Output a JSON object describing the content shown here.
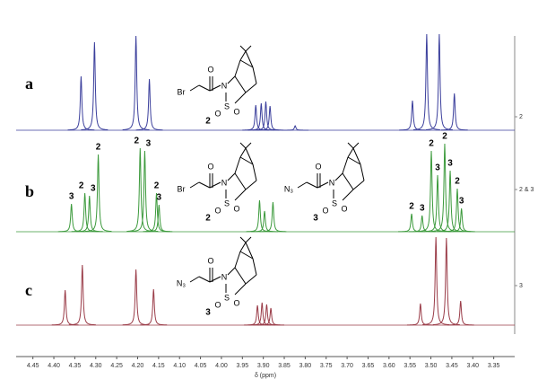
{
  "chart_data": {
    "type": "spectrum",
    "x_label": "δ (ppm)",
    "xlim": [
      4.49,
      3.3
    ],
    "xticks": [
      4.45,
      {
        "value": 4.4,
        "label": "4.40"
      },
      4.35,
      {
        "value": 4.3,
        "label": "4.30"
      },
      4.25,
      {
        "value": 4.2,
        "label": "4.20"
      },
      4.15,
      {
        "value": 4.1,
        "label": "4.10"
      },
      4.05,
      {
        "value": 4.0,
        "label": "4.00"
      },
      3.95,
      {
        "value": 3.9,
        "label": "3.90"
      },
      3.85,
      {
        "value": 3.8,
        "label": "3.80"
      },
      3.75,
      {
        "value": 3.7,
        "label": "3.70"
      },
      3.65,
      {
        "value": 3.6,
        "label": "3.60"
      },
      3.55,
      {
        "value": 3.5,
        "label": "3.50"
      },
      3.45,
      {
        "value": 3.4,
        "label": "3.40"
      },
      3.35
    ],
    "series": [
      {
        "name": "a",
        "axis_label": "2",
        "color": "#3b3f9c",
        "x": [
          4.335,
          4.303,
          4.204,
          4.172,
          3.918,
          3.905,
          3.894,
          3.884,
          3.824,
          3.544,
          3.51,
          3.48,
          3.444
        ],
        "values": [
          60,
          98,
          105,
          57,
          28,
          30,
          32,
          27,
          5,
          33,
          107,
          107,
          41
        ]
      },
      {
        "name": "b",
        "axis_label": "2 & 3",
        "color": "#3c9a3c",
        "x": [
          4.358,
          4.326,
          4.315,
          4.294,
          4.194,
          4.183,
          4.155,
          4.149,
          3.909,
          3.897,
          3.877,
          3.546,
          3.521,
          3.499,
          3.484,
          3.467,
          3.454,
          3.437,
          3.427
        ],
        "values": [
          31,
          43,
          40,
          86,
          93,
          90,
          43,
          30,
          35,
          23,
          33,
          20,
          18,
          90,
          63,
          98,
          68,
          48,
          26
        ],
        "peak_labels": [
          "3",
          "2",
          "3",
          "2",
          "2",
          "3",
          "2",
          "3",
          null,
          null,
          null,
          "2",
          "3",
          "2",
          "3",
          "2",
          "3",
          "2",
          "3"
        ]
      },
      {
        "name": "c",
        "axis_label": "3",
        "color": "#9a3c48",
        "x": [
          4.373,
          4.332,
          4.204,
          4.162,
          3.914,
          3.903,
          3.892,
          3.882,
          3.525,
          3.488,
          3.463,
          3.429
        ],
        "values": [
          39,
          67,
          62,
          40,
          22,
          25,
          23,
          19,
          24,
          98,
          97,
          27
        ]
      }
    ],
    "structures": [
      {
        "atoms": [
          "Br",
          "O",
          "N",
          "S",
          "O",
          "O"
        ],
        "label": "2"
      },
      {
        "atoms": [
          "Br",
          "O",
          "N",
          "S",
          "O",
          "O"
        ],
        "label": "2"
      },
      {
        "atoms": [
          "N₃",
          "O",
          "N",
          "S",
          "O",
          "O"
        ],
        "label": "3"
      },
      {
        "atoms": [
          "N₃",
          "O",
          "N",
          "S",
          "O",
          "O"
        ],
        "label": "3"
      }
    ]
  }
}
